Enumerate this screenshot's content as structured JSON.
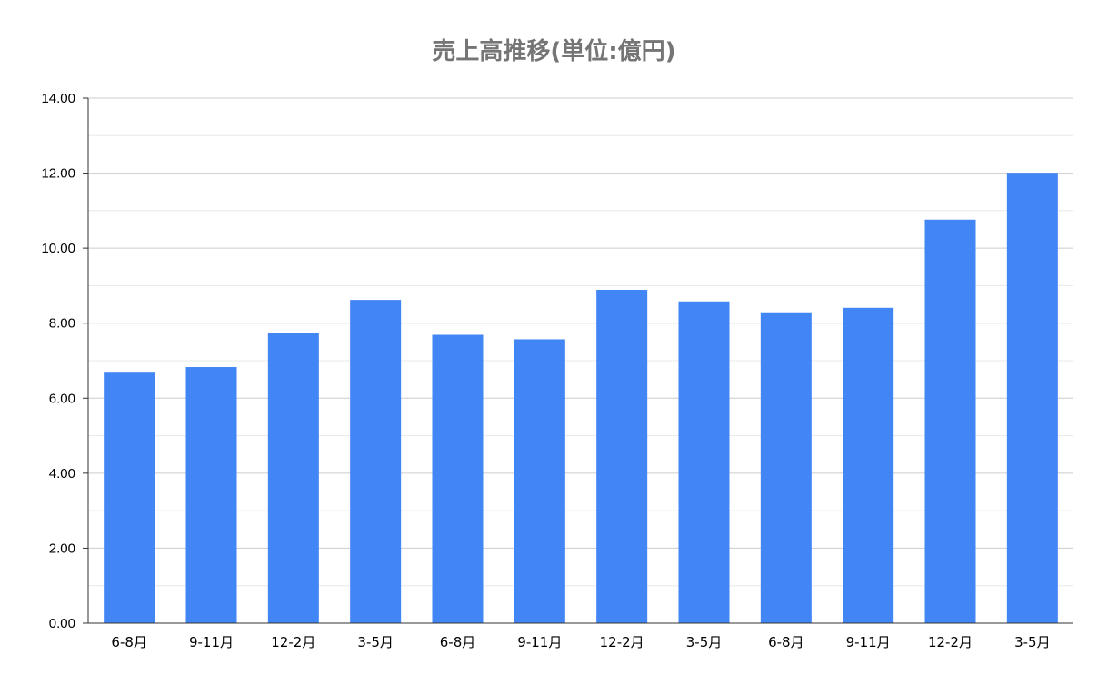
{
  "chart_data": {
    "type": "bar",
    "title": "売上高推移(単位:億円)",
    "xlabel": "",
    "ylabel": "",
    "categories": [
      "6-8月",
      "9-11月",
      "12-2月",
      "3-5月",
      "6-8月",
      "9-11月",
      "12-2月",
      "3-5月",
      "6-8月",
      "9-11月",
      "12-2月",
      "3-5月"
    ],
    "values": [
      6.68,
      6.83,
      7.73,
      8.62,
      7.69,
      7.57,
      8.89,
      8.58,
      8.29,
      8.41,
      10.76,
      12.01
    ],
    "ylim": [
      0,
      14
    ],
    "yticks": [
      "0.00",
      "2.00",
      "4.00",
      "6.00",
      "8.00",
      "10.00",
      "12.00",
      "14.00"
    ],
    "grid": true,
    "legend": "none",
    "colors": {
      "bar": "#4285f4",
      "grid": "#cccccc",
      "minor_grid": "#e8e8e8",
      "axis": "#333333",
      "title": "#757575"
    }
  }
}
